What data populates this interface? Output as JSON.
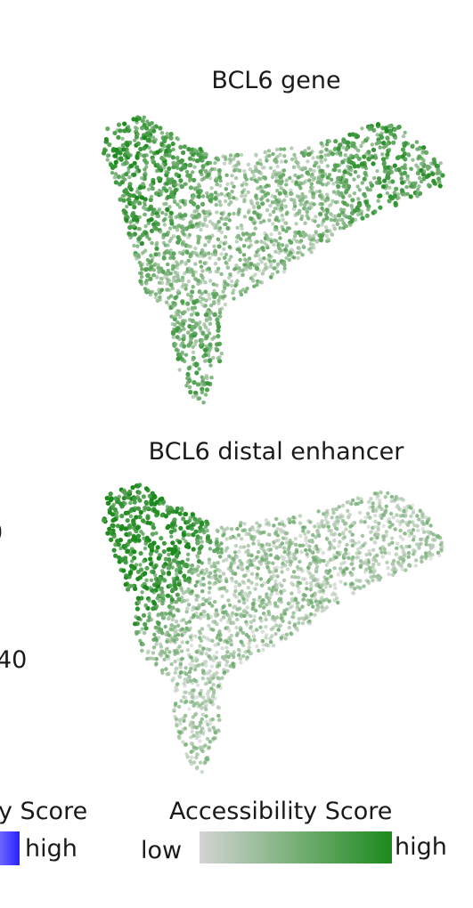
{
  "left_fragments": {
    "mid_text": "0",
    "lower_text": "40",
    "legend_title": "y Score",
    "legend_high": "high",
    "legend_color": "#2a22ff"
  },
  "colors": {
    "low": "#d4d4d4",
    "high": "#1c8a1c"
  },
  "chart_data": [
    {
      "type": "scatter",
      "title": "BCL6 gene",
      "xlabel": "",
      "ylabel": "",
      "grid": false,
      "color_scale": "Accessibility Score",
      "density": [
        {
          "region": "left-lobe",
          "x": [
            -3.0,
            -1.8
          ],
          "y": [
            1.2,
            2.2
          ],
          "accessibility": 0.75
        },
        {
          "region": "center",
          "x": [
            -1.0,
            1.0
          ],
          "y": [
            -0.5,
            1.0
          ],
          "accessibility": 0.45
        },
        {
          "region": "right-lobe",
          "x": [
            1.5,
            3.2
          ],
          "y": [
            0.5,
            2.0
          ],
          "accessibility": 0.7
        },
        {
          "region": "bottom-tail",
          "x": [
            -1.5,
            -0.9
          ],
          "y": [
            -3.0,
            -1.0
          ],
          "accessibility": 0.6
        }
      ]
    },
    {
      "type": "scatter",
      "title": "BCL6 distal enhancer",
      "xlabel": "",
      "ylabel": "",
      "grid": false,
      "color_scale": "Accessibility Score",
      "density": [
        {
          "region": "left-lobe",
          "x": [
            -3.0,
            -1.8
          ],
          "y": [
            1.2,
            2.2
          ],
          "accessibility": 0.92
        },
        {
          "region": "center",
          "x": [
            -1.0,
            1.0
          ],
          "y": [
            -0.5,
            1.0
          ],
          "accessibility": 0.35
        },
        {
          "region": "right-lobe",
          "x": [
            1.5,
            3.2
          ],
          "y": [
            0.5,
            2.0
          ],
          "accessibility": 0.3
        },
        {
          "region": "bottom-tail",
          "x": [
            -1.5,
            -0.9
          ],
          "y": [
            -3.0,
            -1.0
          ],
          "accessibility": 0.3
        }
      ]
    }
  ],
  "legend": {
    "title": "Accessibility Score",
    "low_label": "low",
    "high_label": "high"
  }
}
